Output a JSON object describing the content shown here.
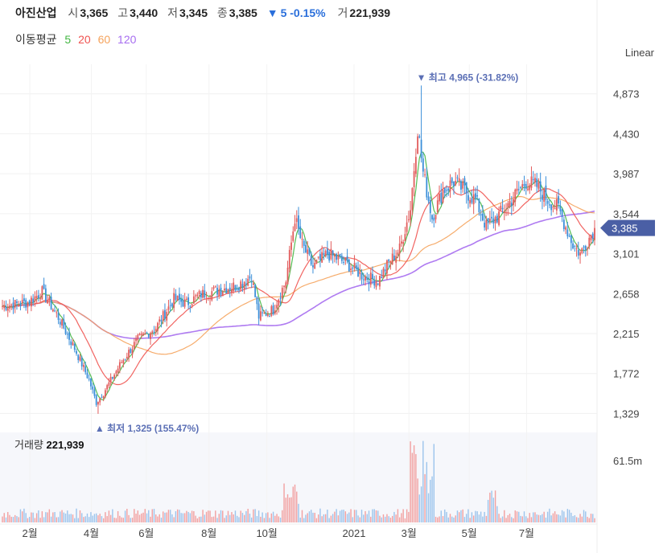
{
  "header": {
    "name": "아진산업",
    "open_label": "시",
    "open": "3,365",
    "high_label": "고",
    "high": "3,440",
    "low_label": "저",
    "low": "3,345",
    "close_label": "종",
    "close": "3,385",
    "change_icon": "down-triangle-icon",
    "change": "5 -0.15%",
    "volume_label": "거",
    "volume": "221,939"
  },
  "ma_legend": {
    "title": "이동평균",
    "items": [
      {
        "label": "5",
        "color": "#41b641"
      },
      {
        "label": "20",
        "color": "#ef5350"
      },
      {
        "label": "60",
        "color": "#f5a35c"
      },
      {
        "label": "120",
        "color": "#a66df0"
      }
    ]
  },
  "scale_label": "Linear",
  "volume_panel": {
    "label": "거래량",
    "value": "221,939",
    "axis_label": "61.5m"
  },
  "colors": {
    "up": "#e25c5c",
    "down": "#3b8fd9",
    "current_price_bg": "#4a5fa5",
    "annotation": "#5b6fb5"
  },
  "chart_data": {
    "type": "candlestick",
    "y_ticks": [
      "4,873",
      "4,430",
      "3,987",
      "3,544",
      "3,101",
      "2,658",
      "2,215",
      "1,772",
      "1,329"
    ],
    "x_ticks": [
      "2월",
      "4월",
      "6월",
      "8월",
      "10월",
      "2021",
      "3월",
      "5월",
      "7월"
    ],
    "ylim": [
      1190,
      5200
    ],
    "current_price": "3,385",
    "high_annotation": "최고 4,965 (-31.82%)",
    "low_annotation": "최저 1,325 (155.47%)",
    "close_anchors": [
      [
        0,
        2520
      ],
      [
        14,
        2560
      ],
      [
        22,
        2680
      ],
      [
        30,
        2430
      ],
      [
        40,
        2050
      ],
      [
        48,
        1700
      ],
      [
        52,
        1450
      ],
      [
        56,
        1560
      ],
      [
        66,
        1900
      ],
      [
        75,
        2150
      ],
      [
        85,
        2280
      ],
      [
        95,
        2600
      ],
      [
        102,
        2550
      ],
      [
        110,
        2650
      ],
      [
        120,
        2700
      ],
      [
        130,
        2750
      ],
      [
        138,
        2850
      ],
      [
        142,
        2400
      ],
      [
        150,
        2480
      ],
      [
        157,
        2800
      ],
      [
        162,
        3500
      ],
      [
        166,
        3200
      ],
      [
        172,
        2950
      ],
      [
        180,
        3100
      ],
      [
        190,
        3000
      ],
      [
        200,
        2850
      ],
      [
        208,
        2800
      ],
      [
        214,
        3000
      ],
      [
        220,
        3150
      ],
      [
        226,
        3600
      ],
      [
        230,
        4500
      ],
      [
        233,
        4000
      ],
      [
        238,
        3500
      ],
      [
        244,
        3800
      ],
      [
        250,
        3900
      ],
      [
        256,
        3800
      ],
      [
        262,
        3700
      ],
      [
        268,
        3400
      ],
      [
        276,
        3550
      ],
      [
        282,
        3700
      ],
      [
        290,
        3900
      ],
      [
        296,
        3850
      ],
      [
        302,
        3700
      ],
      [
        308,
        3600
      ],
      [
        312,
        3400
      ],
      [
        316,
        3200
      ],
      [
        320,
        3100
      ],
      [
        328,
        3385
      ]
    ],
    "count": 329,
    "volume_max": "61.5m"
  }
}
